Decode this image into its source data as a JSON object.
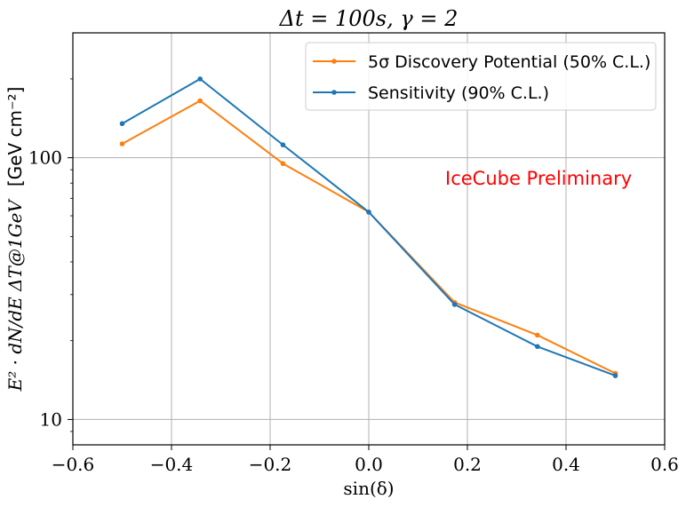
{
  "chart_data": {
    "type": "line",
    "title": "Δt = 100s, γ = 2",
    "xlabel": "sin(δ)",
    "ylabel_main": "E² · dN/dE ΔT@1GeV",
    "ylabel_unit": "[GeV cm⁻²]",
    "xlim": [
      -0.6,
      0.6
    ],
    "ylim": [
      8,
      300
    ],
    "yscale": "log",
    "grid": true,
    "legend_position": "top-right",
    "x_ticks": [
      -0.6,
      -0.4,
      -0.2,
      0.0,
      0.2,
      0.4,
      0.6
    ],
    "x_tick_labels": [
      "−0.6",
      "−0.4",
      "−0.2",
      "0.0",
      "0.2",
      "0.4",
      "0.6"
    ],
    "y_ticks": [
      10,
      100
    ],
    "y_tick_labels": [
      "10",
      "100"
    ],
    "series": [
      {
        "name": "5σ Discovery Potential (50% C.L.)",
        "color": "#ff7f0e",
        "x": [
          -0.5,
          -0.342,
          -0.174,
          0.0,
          0.174,
          0.342,
          0.5
        ],
        "y": [
          113,
          165,
          95,
          62,
          28,
          21,
          15
        ]
      },
      {
        "name": "Sensitivity (90% C.L.)",
        "color": "#1f77b4",
        "x": [
          -0.5,
          -0.342,
          -0.174,
          0.0,
          0.174,
          0.342,
          0.5
        ],
        "y": [
          135,
          200,
          112,
          62,
          27.5,
          19,
          14.7
        ]
      }
    ],
    "annotation": {
      "text": "IceCube Preliminary",
      "color": "#ff0000"
    }
  }
}
